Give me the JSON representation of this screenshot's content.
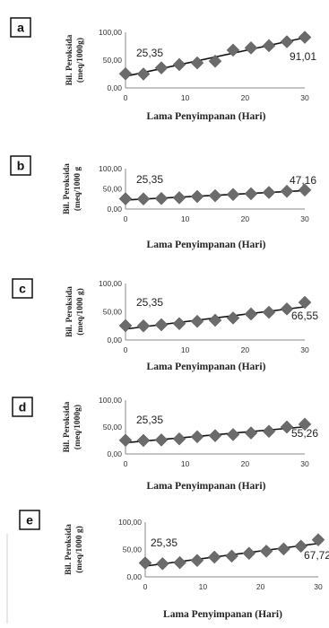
{
  "chart_data": [
    {
      "type": "scatter",
      "panel_label": "a",
      "ylabel_line1": "Bil. Peroksida",
      "ylabel_line2": "(meq/1000g)",
      "xlabel": "Lama Penyimpanan  (Hari)",
      "x_ticks": [
        "0",
        "10",
        "20",
        "30"
      ],
      "y_ticks": [
        "0,00",
        "50,00",
        "100,00"
      ],
      "xlim": [
        0,
        30
      ],
      "ylim": [
        0,
        100
      ],
      "x": [
        0,
        3,
        6,
        9,
        12,
        15,
        18,
        21,
        24,
        27,
        30
      ],
      "y": [
        25.35,
        25.0,
        36.0,
        42.0,
        45.0,
        48.0,
        68.0,
        72.0,
        76.0,
        83.0,
        91.01
      ],
      "trendline": true,
      "annotations": [
        "25,35",
        "91,01"
      ]
    },
    {
      "type": "scatter",
      "panel_label": "b",
      "ylabel_line1": "Bil. Peroksida",
      "ylabel_line2": "(meq/1000 g",
      "xlabel": "Lama Penyimpanan  (Hari)",
      "x_ticks": [
        "0",
        "10",
        "20",
        "30"
      ],
      "y_ticks": [
        "0,00",
        "50,00",
        "100,00"
      ],
      "xlim": [
        0,
        30
      ],
      "ylim": [
        0,
        100
      ],
      "x": [
        0,
        3,
        6,
        9,
        12,
        15,
        18,
        21,
        24,
        27,
        30
      ],
      "y": [
        25.35,
        25.0,
        26.0,
        28.0,
        31.0,
        33.0,
        36.0,
        38.0,
        41.0,
        44.0,
        47.16
      ],
      "trendline": true,
      "annotations": [
        "25,35",
        "47,16"
      ]
    },
    {
      "type": "scatter",
      "panel_label": "c",
      "ylabel_line1": "Bil. Peroksida",
      "ylabel_line2": "(meq/1000 g)",
      "xlabel": "Lama Penyimpanan  (Hari)",
      "x_ticks": [
        "0",
        "10",
        "20",
        "30"
      ],
      "y_ticks": [
        "0,00",
        "50,00",
        "100,00"
      ],
      "xlim": [
        0,
        30
      ],
      "ylim": [
        0,
        100
      ],
      "x": [
        0,
        3,
        6,
        9,
        12,
        15,
        18,
        21,
        24,
        27,
        30
      ],
      "y": [
        25.35,
        25.0,
        27.0,
        29.0,
        33.0,
        35.0,
        39.0,
        46.0,
        49.0,
        55.0,
        66.55
      ],
      "trendline": true,
      "annotations": [
        "25,35",
        "66,55"
      ]
    },
    {
      "type": "scatter",
      "panel_label": "d",
      "ylabel_line1": "Bil. Peroksida",
      "ylabel_line2": "(meq/1000g)",
      "xlabel": "Lama Penyimpanan  (Hari)",
      "x_ticks": [
        "0",
        "10",
        "20",
        "30"
      ],
      "y_ticks": [
        "0,00",
        "50,00",
        "100,00"
      ],
      "xlim": [
        0,
        30
      ],
      "ylim": [
        0,
        100
      ],
      "x": [
        0,
        3,
        6,
        9,
        12,
        15,
        18,
        21,
        24,
        27,
        30
      ],
      "y": [
        25.35,
        25.0,
        26.0,
        28.0,
        32.0,
        34.0,
        36.0,
        39.0,
        42.0,
        50.0,
        55.26
      ],
      "trendline": true,
      "annotations": [
        "25,35",
        "55,26"
      ]
    },
    {
      "type": "scatter",
      "panel_label": "e",
      "ylabel_line1": "Bil. Peroksida",
      "ylabel_line2": "(meq/1000 g)",
      "xlabel": "Lama Penyimpanan  (Hari)",
      "x_ticks": [
        "0",
        "10",
        "20",
        "30"
      ],
      "y_ticks": [
        "0,00",
        "50,00",
        "100,00"
      ],
      "xlim": [
        0,
        30
      ],
      "ylim": [
        0,
        100
      ],
      "x": [
        0,
        3,
        6,
        9,
        12,
        15,
        18,
        21,
        24,
        27,
        30
      ],
      "y": [
        25.35,
        24.0,
        26.0,
        30.0,
        36.0,
        38.0,
        43.0,
        47.0,
        51.0,
        56.0,
        67.72
      ],
      "trendline": true,
      "annotations": [
        "25,35",
        "67,72"
      ]
    }
  ]
}
